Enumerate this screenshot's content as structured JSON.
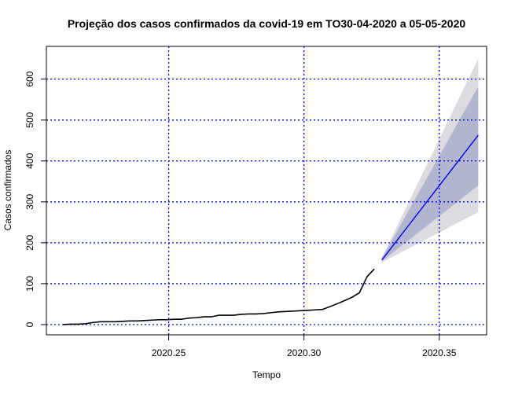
{
  "chart_data": {
    "type": "line",
    "title": "Projeção dos casos confirmados da covid-19 em TO30-04-2020 a 05-05-2020",
    "xlabel": "Tempo",
    "ylabel": "Casos confirmados",
    "xlim": [
      2020.2048,
      2020.3675
    ],
    "ylim": [
      -25,
      680
    ],
    "x_ticks": [
      2020.25,
      2020.3,
      2020.35
    ],
    "x_tick_labels": [
      "2020.25",
      "2020.30",
      "2020.35"
    ],
    "y_ticks": [
      0,
      100,
      200,
      300,
      400,
      500,
      600
    ],
    "y_tick_labels": [
      "0",
      "100",
      "200",
      "300",
      "400",
      "500",
      "600"
    ],
    "grid": true,
    "colors": {
      "observed": "#000000",
      "forecast": "#0000ff",
      "band_80": "#b1b5ce",
      "band_95": "#dbdbe0",
      "grid": "#0000ff"
    },
    "observed": {
      "x": [
        2020.211,
        2020.2137,
        2020.2164,
        2020.2192,
        2020.2219,
        2020.2247,
        2020.2274,
        2020.2301,
        2020.2329,
        2020.2356,
        2020.2384,
        2020.2411,
        2020.2438,
        2020.2466,
        2020.2493,
        2020.2521,
        2020.2548,
        2020.2575,
        2020.2603,
        2020.263,
        2020.2658,
        2020.2685,
        2020.2712,
        2020.274,
        2020.2767,
        2020.2795,
        2020.2822,
        2020.2849,
        2020.2877,
        2020.2904,
        2020.2932,
        2020.2959,
        2020.2986,
        2020.3014,
        2020.3041,
        2020.3068,
        2020.3096,
        2020.3123,
        2020.3151,
        2020.3178,
        2020.3205,
        2020.3233,
        2020.326
      ],
      "y": [
        0,
        1,
        1,
        2,
        5,
        7,
        7,
        7,
        8,
        9,
        9,
        10,
        11,
        12,
        12,
        13,
        13,
        16,
        17,
        19,
        19,
        23,
        23,
        23,
        25,
        26,
        26,
        27,
        29,
        31,
        32,
        33,
        34,
        35,
        36,
        37,
        44,
        51,
        59,
        67,
        78,
        117,
        136
      ]
    },
    "forecast": {
      "x": [
        2020.3288,
        2020.3644
      ],
      "y": [
        158,
        463
      ]
    },
    "band_80": {
      "x": [
        2020.3288,
        2020.3644
      ],
      "lower": [
        155,
        340
      ],
      "upper": [
        162,
        582
      ]
    },
    "band_95": {
      "x": [
        2020.3288,
        2020.3644
      ],
      "lower": [
        152,
        275
      ],
      "upper": [
        164,
        650
      ]
    }
  }
}
